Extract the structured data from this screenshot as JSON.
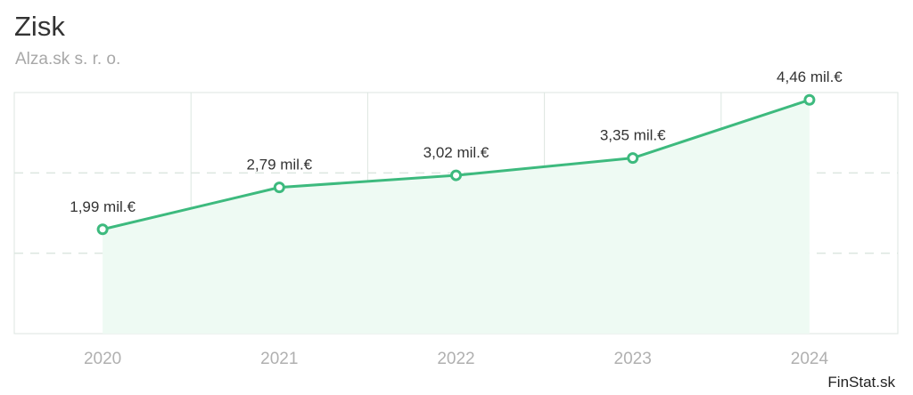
{
  "header": {
    "title": "Zisk",
    "subtitle": "Alza.sk s. r. o."
  },
  "footer": {
    "brand": "FinStat.sk"
  },
  "colors": {
    "line": "#3dba7e",
    "area": "#eefaf3",
    "grid": "#dce6e0",
    "axis_text": "#b0b0b0",
    "label_text": "#333333"
  },
  "chart_data": {
    "type": "area",
    "categories": [
      "2020",
      "2021",
      "2022",
      "2023",
      "2024"
    ],
    "values": [
      1.99,
      2.79,
      3.02,
      3.35,
      4.46
    ],
    "data_labels": [
      "1,99 mil.€",
      "2,79 mil.€",
      "3,02 mil.€",
      "3,35 mil.€",
      "4,46 mil.€"
    ],
    "ylim": [
      0,
      4.6
    ],
    "grid": true
  }
}
